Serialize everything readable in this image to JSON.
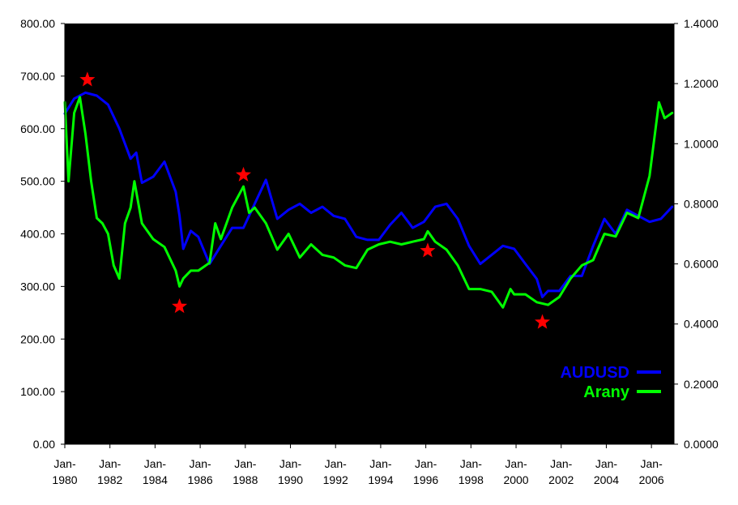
{
  "chart_data": {
    "type": "line",
    "title": "",
    "x_range": [
      "Jan-1980",
      "Dec-2006"
    ],
    "x_tick_labels": [
      "Jan-1980",
      "Jan-1982",
      "Jan-1984",
      "Jan-1986",
      "Jan-1988",
      "Jan-1990",
      "Jan-1992",
      "Jan-1994",
      "Jan-1996",
      "Jan-1998",
      "Jan-2000",
      "Jan-2002",
      "Jan-2004",
      "Jan-2006"
    ],
    "y_left": {
      "min": 0,
      "max": 800,
      "ticks": [
        "0.00",
        "100.00",
        "200.00",
        "300.00",
        "400.00",
        "500.00",
        "600.00",
        "700.00",
        "800.00"
      ]
    },
    "y_right": {
      "min": 0,
      "max": 1.4,
      "ticks": [
        "0.0000",
        "0.2000",
        "0.4000",
        "0.6000",
        "0.8000",
        "1.0000",
        "1.2000",
        "1.4000"
      ]
    },
    "grid": false,
    "background": "#000000",
    "legend_position": "bottom-right",
    "series": [
      {
        "name": "AUDUSD",
        "axis": "right",
        "color": "#0000ff",
        "points": [
          [
            "1980-01",
            1.1
          ],
          [
            "1980-06",
            1.15
          ],
          [
            "1980-12",
            1.17
          ],
          [
            "1981-06",
            1.16
          ],
          [
            "1981-12",
            1.13
          ],
          [
            "1982-06",
            1.05
          ],
          [
            "1982-12",
            0.95
          ],
          [
            "1983-03",
            0.97
          ],
          [
            "1983-06",
            0.87
          ],
          [
            "1983-12",
            0.89
          ],
          [
            "1984-06",
            0.94
          ],
          [
            "1984-12",
            0.84
          ],
          [
            "1985-02",
            0.76
          ],
          [
            "1985-04",
            0.65
          ],
          [
            "1985-08",
            0.71
          ],
          [
            "1985-12",
            0.69
          ],
          [
            "1986-06",
            0.6
          ],
          [
            "1986-12",
            0.66
          ],
          [
            "1987-06",
            0.72
          ],
          [
            "1987-12",
            0.72
          ],
          [
            "1988-06",
            0.8
          ],
          [
            "1988-12",
            0.88
          ],
          [
            "1989-06",
            0.75
          ],
          [
            "1989-12",
            0.78
          ],
          [
            "1990-06",
            0.8
          ],
          [
            "1990-12",
            0.77
          ],
          [
            "1991-06",
            0.79
          ],
          [
            "1991-12",
            0.76
          ],
          [
            "1992-06",
            0.75
          ],
          [
            "1992-12",
            0.69
          ],
          [
            "1993-06",
            0.68
          ],
          [
            "1993-12",
            0.68
          ],
          [
            "1994-06",
            0.73
          ],
          [
            "1994-12",
            0.77
          ],
          [
            "1995-06",
            0.72
          ],
          [
            "1995-12",
            0.74
          ],
          [
            "1996-06",
            0.79
          ],
          [
            "1996-12",
            0.8
          ],
          [
            "1997-06",
            0.75
          ],
          [
            "1997-12",
            0.66
          ],
          [
            "1998-06",
            0.6
          ],
          [
            "1998-12",
            0.63
          ],
          [
            "1999-06",
            0.66
          ],
          [
            "1999-12",
            0.65
          ],
          [
            "2000-06",
            0.6
          ],
          [
            "2000-12",
            0.55
          ],
          [
            "2001-03",
            0.49
          ],
          [
            "2001-06",
            0.51
          ],
          [
            "2001-12",
            0.51
          ],
          [
            "2002-06",
            0.56
          ],
          [
            "2002-12",
            0.56
          ],
          [
            "2003-06",
            0.66
          ],
          [
            "2003-12",
            0.75
          ],
          [
            "2004-06",
            0.7
          ],
          [
            "2004-12",
            0.78
          ],
          [
            "2005-06",
            0.76
          ],
          [
            "2005-12",
            0.74
          ],
          [
            "2006-06",
            0.75
          ],
          [
            "2006-12",
            0.79
          ]
        ]
      },
      {
        "name": "Arany",
        "axis": "left",
        "color": "#00ff00",
        "points": [
          [
            "1980-01",
            650
          ],
          [
            "1980-03",
            500
          ],
          [
            "1980-06",
            630
          ],
          [
            "1980-09",
            660
          ],
          [
            "1980-12",
            590
          ],
          [
            "1981-03",
            500
          ],
          [
            "1981-06",
            430
          ],
          [
            "1981-09",
            420
          ],
          [
            "1981-12",
            400
          ],
          [
            "1982-03",
            340
          ],
          [
            "1982-06",
            315
          ],
          [
            "1982-09",
            420
          ],
          [
            "1982-12",
            450
          ],
          [
            "1983-02",
            500
          ],
          [
            "1983-06",
            420
          ],
          [
            "1983-12",
            390
          ],
          [
            "1984-06",
            375
          ],
          [
            "1984-12",
            330
          ],
          [
            "1985-02",
            300
          ],
          [
            "1985-04",
            315
          ],
          [
            "1985-08",
            330
          ],
          [
            "1985-12",
            330
          ],
          [
            "1986-06",
            345
          ],
          [
            "1986-09",
            420
          ],
          [
            "1986-12",
            390
          ],
          [
            "1987-06",
            450
          ],
          [
            "1987-12",
            490
          ],
          [
            "1988-03",
            440
          ],
          [
            "1988-06",
            450
          ],
          [
            "1988-12",
            420
          ],
          [
            "1989-06",
            370
          ],
          [
            "1989-12",
            400
          ],
          [
            "1990-06",
            355
          ],
          [
            "1990-12",
            380
          ],
          [
            "1991-06",
            360
          ],
          [
            "1991-12",
            355
          ],
          [
            "1992-06",
            340
          ],
          [
            "1992-12",
            335
          ],
          [
            "1993-06",
            370
          ],
          [
            "1993-12",
            380
          ],
          [
            "1994-06",
            385
          ],
          [
            "1994-12",
            380
          ],
          [
            "1995-06",
            385
          ],
          [
            "1995-12",
            390
          ],
          [
            "1996-02",
            405
          ],
          [
            "1996-06",
            385
          ],
          [
            "1996-12",
            370
          ],
          [
            "1997-06",
            340
          ],
          [
            "1997-12",
            295
          ],
          [
            "1998-06",
            295
          ],
          [
            "1998-12",
            290
          ],
          [
            "1999-06",
            260
          ],
          [
            "1999-10",
            295
          ],
          [
            "1999-12",
            285
          ],
          [
            "2000-06",
            285
          ],
          [
            "2000-12",
            270
          ],
          [
            "2001-06",
            265
          ],
          [
            "2001-12",
            280
          ],
          [
            "2002-06",
            315
          ],
          [
            "2002-12",
            340
          ],
          [
            "2003-06",
            350
          ],
          [
            "2003-12",
            400
          ],
          [
            "2004-06",
            395
          ],
          [
            "2004-12",
            440
          ],
          [
            "2005-06",
            430
          ],
          [
            "2005-12",
            510
          ],
          [
            "2006-05",
            650
          ],
          [
            "2006-08",
            620
          ],
          [
            "2006-12",
            630
          ]
        ]
      }
    ],
    "markers": [
      {
        "shape": "star",
        "color": "#ff0000",
        "date": "1981-01",
        "axis": "left",
        "value": 693
      },
      {
        "shape": "star",
        "color": "#ff0000",
        "date": "1985-02",
        "axis": "left",
        "value": 262
      },
      {
        "shape": "star",
        "color": "#ff0000",
        "date": "1987-12",
        "axis": "left",
        "value": 512
      },
      {
        "shape": "star",
        "color": "#ff0000",
        "date": "1996-02",
        "axis": "left",
        "value": 368
      },
      {
        "shape": "star",
        "color": "#ff0000",
        "date": "2001-03",
        "axis": "left",
        "value": 232
      }
    ]
  }
}
